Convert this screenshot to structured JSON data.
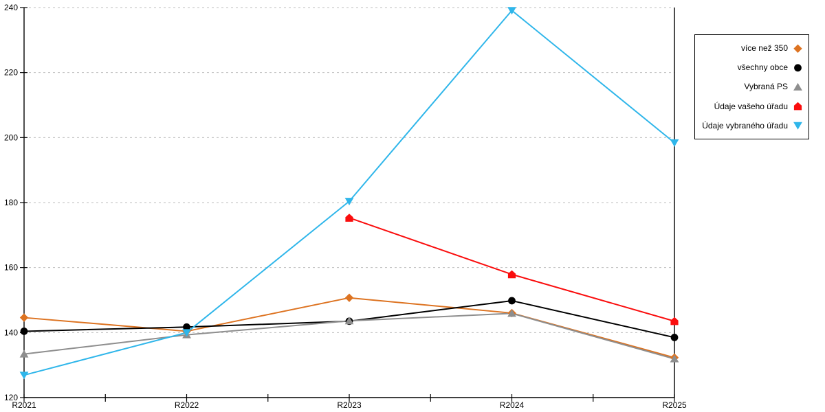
{
  "chart_data": {
    "type": "line",
    "title": "",
    "xlabel": "",
    "ylabel": "",
    "categories": [
      "R2021",
      "R2022",
      "R2023",
      "R2024",
      "R2025"
    ],
    "series": [
      {
        "name": "více než 350",
        "marker": "diamond",
        "color": "#DD7321",
        "values": [
          144.6,
          140.4,
          150.7,
          146.0,
          132.3
        ]
      },
      {
        "name": "všechny obce",
        "marker": "circle",
        "color": "#000000",
        "values": [
          140.4,
          141.7,
          143.5,
          149.8,
          138.5
        ]
      },
      {
        "name": "Vybraná PS",
        "marker": "triangle-up",
        "color": "#8E8E8E",
        "values": [
          133.4,
          139.3,
          143.6,
          145.9,
          131.9
        ]
      },
      {
        "name": "Údaje vašeho úřadu",
        "marker": "pentagon",
        "color": "#FA0D0D",
        "values": [
          null,
          null,
          175.3,
          157.9,
          143.5
        ]
      },
      {
        "name": "Údaje vybraného úřadu",
        "marker": "triangle-down",
        "color": "#2FB6EA",
        "values": [
          126.9,
          140.0,
          180.4,
          239.1,
          198.4
        ]
      }
    ],
    "ylim": [
      120,
      240
    ],
    "ytick_step": 20,
    "y_tick_labels": [
      "120",
      "140",
      "160",
      "180",
      "200",
      "220",
      "240"
    ],
    "grid": "dotted-horizontal",
    "legend_position": "top-right"
  },
  "style_colors": {
    "grid": "#BDBDBD",
    "axis": "#000000",
    "background": "#FFFFFF",
    "legend_border": "#000000"
  }
}
